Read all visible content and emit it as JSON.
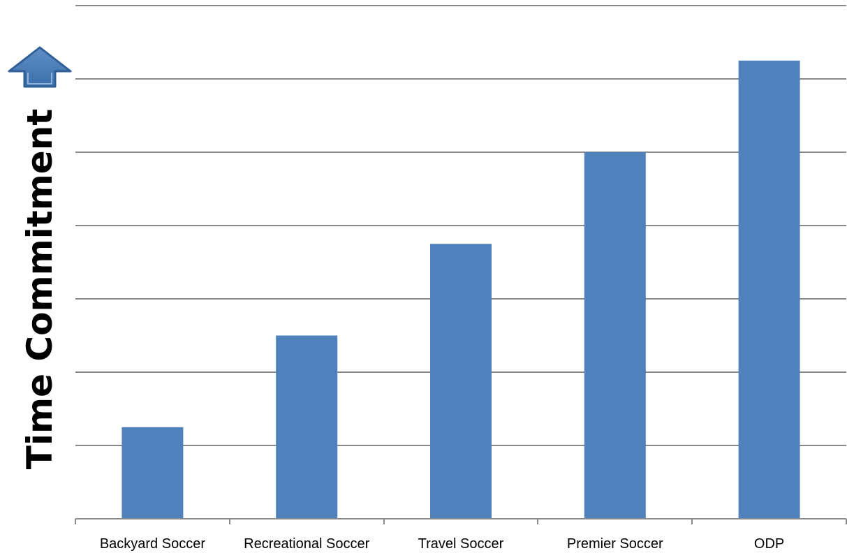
{
  "chart_data": {
    "type": "bar",
    "title": "",
    "xlabel": "",
    "ylabel": "Time Commitment",
    "categories": [
      "Backyard Soccer",
      "Recreational Soccer",
      "Travel Soccer",
      "Premier Soccer",
      "ODP"
    ],
    "values": [
      1.25,
      2.5,
      3.75,
      5.0,
      6.25
    ],
    "ylim": [
      0,
      7
    ],
    "grid": true,
    "bar_color": "#4F81BD",
    "gridline_color": "#8A8A8A",
    "ylabel_icon": "up-arrow-icon",
    "ylabel_icon_color": "#4F81BD"
  }
}
